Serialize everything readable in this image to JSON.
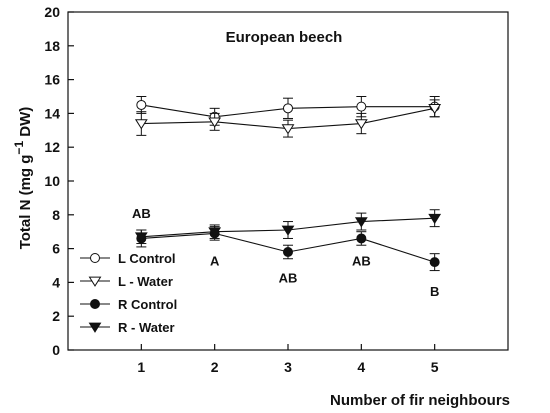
{
  "chart_data": {
    "type": "line",
    "title": "European beech",
    "xlabel": "Number of fir neighbours",
    "ylabel": "Total N (mg g",
    "ylabel_sup": "−1",
    "ylabel_tail": " DW)",
    "x": [
      1,
      2,
      3,
      4,
      5
    ],
    "xlim": [
      0,
      6
    ],
    "ylim": [
      0,
      20
    ],
    "xticks": [
      "1",
      "2",
      "3",
      "4",
      "5"
    ],
    "yticks": [
      "0",
      "2",
      "4",
      "6",
      "8",
      "10",
      "12",
      "14",
      "16",
      "18",
      "20"
    ],
    "grid": false,
    "legend_position": "bottom-left",
    "series": [
      {
        "name": "L Control",
        "marker": "circle-open",
        "values": [
          14.5,
          13.8,
          14.3,
          14.4,
          14.4
        ],
        "errors": [
          0.5,
          0.5,
          0.6,
          0.6,
          0.6
        ]
      },
      {
        "name": "L - Water",
        "marker": "triangle-down-open",
        "values": [
          13.4,
          13.5,
          13.1,
          13.4,
          14.3
        ],
        "errors": [
          0.7,
          0.5,
          0.5,
          0.6,
          0.5
        ]
      },
      {
        "name": "R Control",
        "marker": "circle-filled",
        "values": [
          6.6,
          6.9,
          5.8,
          6.6,
          5.2
        ],
        "errors": [
          0.5,
          0.4,
          0.4,
          0.4,
          0.5
        ]
      },
      {
        "name": "R - Water",
        "marker": "triangle-down-filled",
        "values": [
          6.7,
          7.0,
          7.1,
          7.6,
          7.8
        ],
        "errors": [
          0.4,
          0.4,
          0.5,
          0.5,
          0.5
        ]
      }
    ],
    "annotations": [
      {
        "x": 1,
        "y": 8.1,
        "text": "AB"
      },
      {
        "x": 2,
        "y": 5.3,
        "text": "A"
      },
      {
        "x": 3,
        "y": 4.3,
        "text": "AB"
      },
      {
        "x": 4,
        "y": 5.3,
        "text": "AB"
      },
      {
        "x": 5,
        "y": 3.5,
        "text": "B"
      }
    ]
  }
}
